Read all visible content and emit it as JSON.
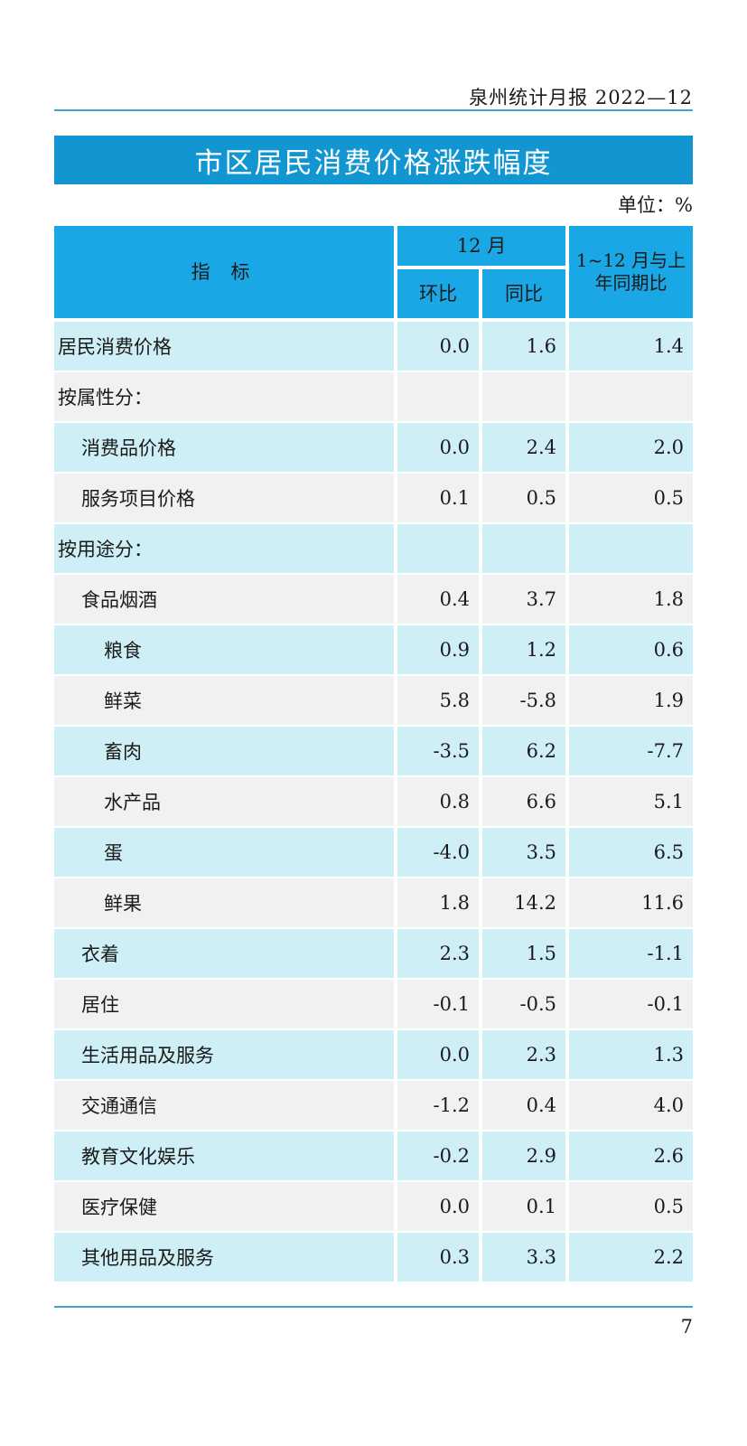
{
  "header": {
    "running_title": "泉州统计月报 2022—12"
  },
  "title": "市区居民消费价格涨跌幅度",
  "unit": "单位：%",
  "table": {
    "col_index": "指 标",
    "col_month": "12 月",
    "col_mom": "环比",
    "col_yoy": "同比",
    "col_ytd": "1~12 月与上年同期比",
    "rows": [
      {
        "label": "居民消费价格",
        "level": 0,
        "mom": "0.0",
        "yoy": "1.6",
        "ytd": "1.4"
      },
      {
        "label": "按属性分：",
        "level": 0,
        "mom": "",
        "yoy": "",
        "ytd": ""
      },
      {
        "label": "消费品价格",
        "level": 1,
        "mom": "0.0",
        "yoy": "2.4",
        "ytd": "2.0"
      },
      {
        "label": "服务项目价格",
        "level": 1,
        "mom": "0.1",
        "yoy": "0.5",
        "ytd": "0.5"
      },
      {
        "label": "按用途分：",
        "level": 0,
        "mom": "",
        "yoy": "",
        "ytd": ""
      },
      {
        "label": "食品烟酒",
        "level": 1,
        "mom": "0.4",
        "yoy": "3.7",
        "ytd": "1.8"
      },
      {
        "label": "粮食",
        "level": 2,
        "mom": "0.9",
        "yoy": "1.2",
        "ytd": "0.6"
      },
      {
        "label": "鲜菜",
        "level": 2,
        "mom": "5.8",
        "yoy": "-5.8",
        "ytd": "1.9"
      },
      {
        "label": "畜肉",
        "level": 2,
        "mom": "-3.5",
        "yoy": "6.2",
        "ytd": "-7.7"
      },
      {
        "label": "水产品",
        "level": 2,
        "mom": "0.8",
        "yoy": "6.6",
        "ytd": "5.1"
      },
      {
        "label": "蛋",
        "level": 2,
        "mom": "-4.0",
        "yoy": "3.5",
        "ytd": "6.5"
      },
      {
        "label": "鲜果",
        "level": 2,
        "mom": "1.8",
        "yoy": "14.2",
        "ytd": "11.6"
      },
      {
        "label": "衣着",
        "level": 1,
        "mom": "2.3",
        "yoy": "1.5",
        "ytd": "-1.1"
      },
      {
        "label": "居住",
        "level": 1,
        "mom": "-0.1",
        "yoy": "-0.5",
        "ytd": "-0.1"
      },
      {
        "label": "生活用品及服务",
        "level": 1,
        "mom": "0.0",
        "yoy": "2.3",
        "ytd": "1.3"
      },
      {
        "label": "交通通信",
        "level": 1,
        "mom": "-1.2",
        "yoy": "0.4",
        "ytd": "4.0"
      },
      {
        "label": "教育文化娱乐",
        "level": 1,
        "mom": "-0.2",
        "yoy": "2.9",
        "ytd": "2.6"
      },
      {
        "label": "医疗保健",
        "level": 1,
        "mom": "0.0",
        "yoy": "0.1",
        "ytd": "0.5"
      },
      {
        "label": "其他用品及服务",
        "level": 1,
        "mom": "0.3",
        "yoy": "3.3",
        "ytd": "2.2"
      }
    ]
  },
  "footer": {
    "page_number": "7"
  },
  "colors": {
    "accent": "#1196d1",
    "header_cell": "#1aa7e5",
    "row_alt": "#cfeff7",
    "row_norm": "#f1f1f1",
    "rule": "#3aa6d6"
  }
}
